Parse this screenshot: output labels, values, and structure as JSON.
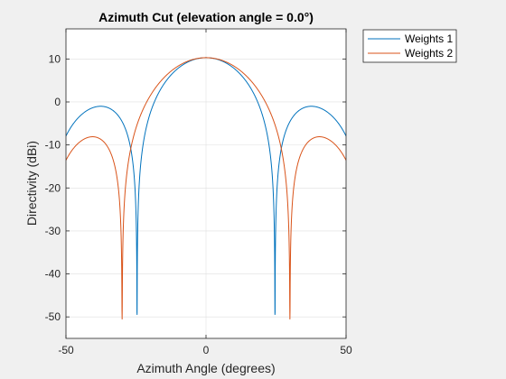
{
  "chart_data": {
    "type": "line",
    "title": "Azimuth Cut (elevation angle = 0.0°)",
    "xlabel": "Azimuth Angle (degrees)",
    "ylabel": "Directivity (dBi)",
    "xlim": [
      -50,
      50
    ],
    "ylim": [
      -55,
      17
    ],
    "xticks": [
      -50,
      0,
      50
    ],
    "yticks": [
      -50,
      -40,
      -30,
      -20,
      -10,
      0,
      10
    ],
    "grid": true,
    "legend_position": "outside top-right",
    "series": [
      {
        "name": "Weights 1",
        "color": "#0072BD",
        "model": {
          "peak": 10.3,
          "n": 4,
          "spacing": 0.6,
          "taper": [
            1,
            1,
            1,
            1
          ],
          "floor": -50.5
        }
      },
      {
        "name": "Weights 2",
        "color": "#D95319",
        "model": {
          "peak": 10.3,
          "n": 4,
          "spacing": 0.6,
          "taper": [
            0.62,
            1,
            1,
            0.62
          ],
          "floor": -50.5
        }
      }
    ]
  }
}
